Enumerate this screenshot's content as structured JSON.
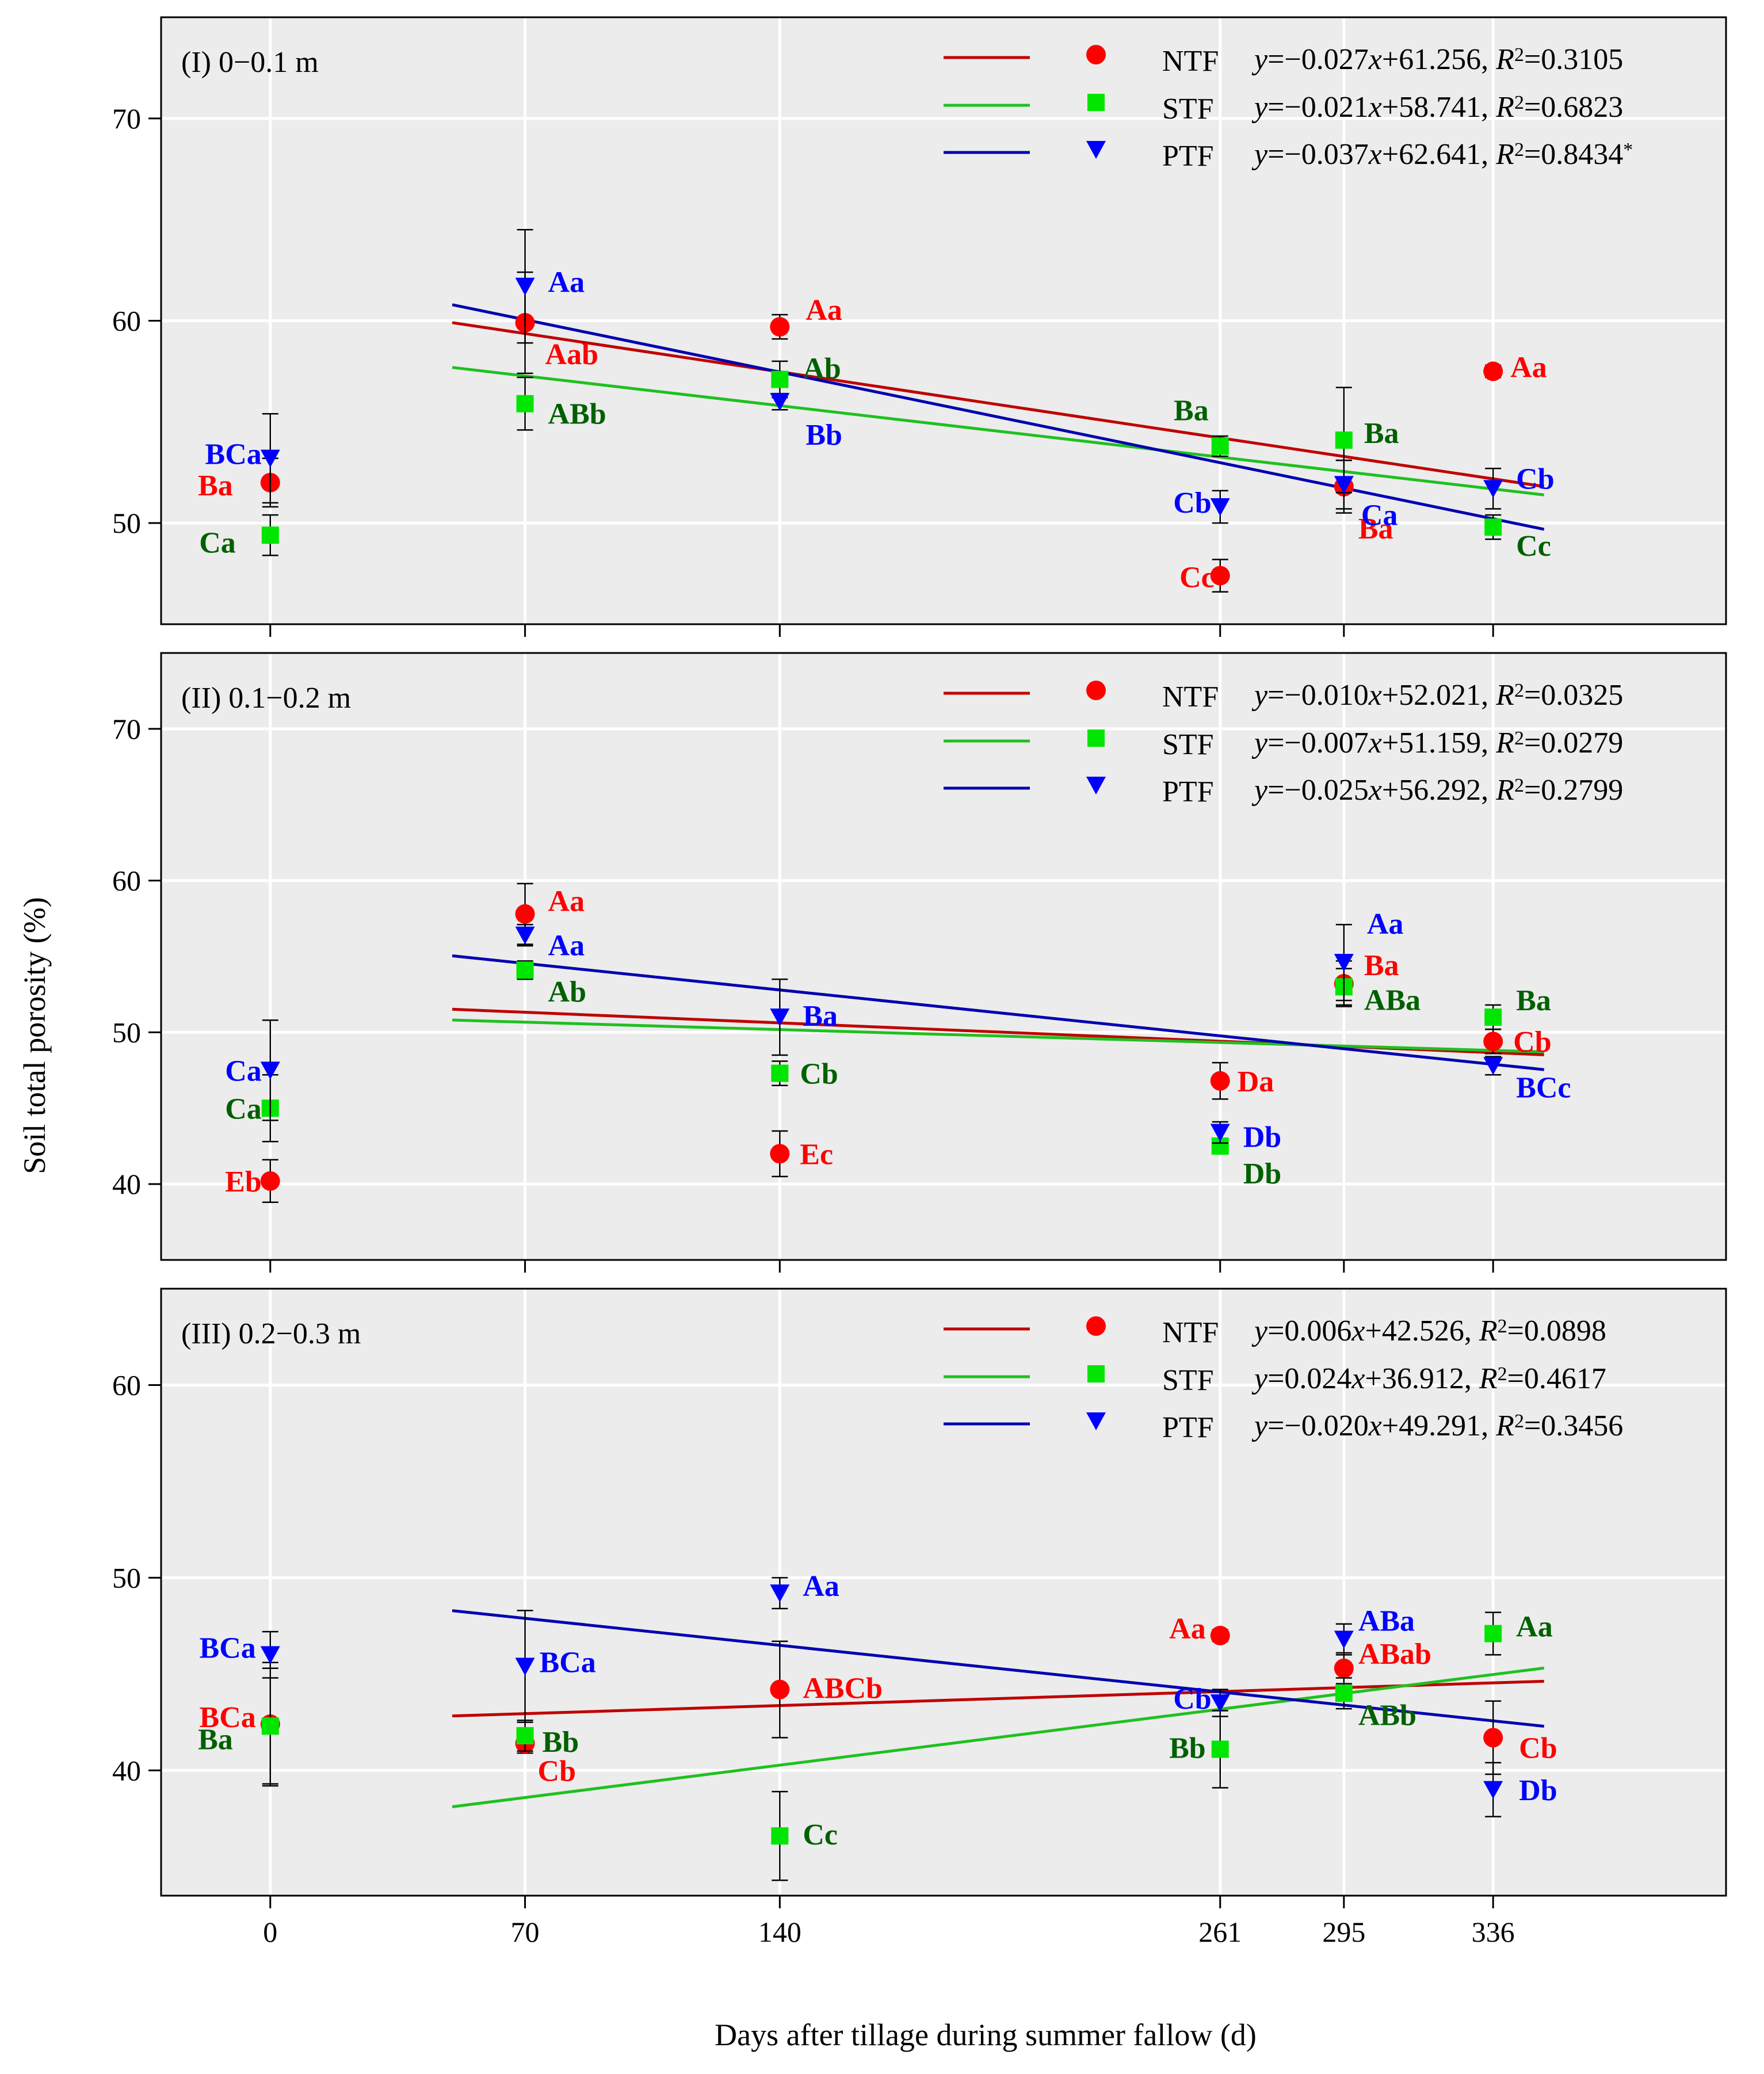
{
  "chart_data": {
    "type": "scatter",
    "xlabel": "Days after tillage during summer fallow (d)",
    "ylabel": "Soil total porosity (%)",
    "xticks": [
      0,
      70,
      140,
      261,
      295,
      336
    ],
    "xlim": [
      -30,
      400
    ],
    "colors": {
      "NTF": "#ff0000",
      "STF": "#00e600",
      "PTF": "#0000ff",
      "NTF_line": "#c00000",
      "STF_line": "#20c020",
      "PTF_line": "#0000b0",
      "STF_label": "#006000",
      "panel_bg": "#ececec"
    },
    "legend_names": [
      "NTF",
      "STF",
      "PTF"
    ],
    "panels": [
      {
        "title": "(I) 0−0.1 m",
        "ylim": [
          45,
          75
        ],
        "yticks": [
          50,
          60,
          70
        ],
        "series": [
          {
            "name": "NTF",
            "marker": "circle",
            "x": [
              0,
              70,
              140,
              261,
              295,
              336
            ],
            "y": [
              52.0,
              59.9,
              59.7,
              47.4,
              51.8,
              57.5
            ],
            "err": [
              1.2,
              2.5,
              0.6,
              0.8,
              1.3,
              0.3
            ],
            "letters": [
              "Ba",
              "Aab",
              "Aa",
              "Cc",
              "Ba",
              "Aa"
            ],
            "fit": {
              "x": [
                50,
                350
              ],
              "equation": "y=−0.027x+61.256, R²=0.3105"
            }
          },
          {
            "name": "STF",
            "marker": "square",
            "x": [
              0,
              70,
              140,
              261,
              295,
              336
            ],
            "y": [
              49.4,
              55.9,
              57.1,
              53.8,
              54.1,
              49.8
            ],
            "err": [
              1.0,
              1.3,
              0.9,
              0.5,
              2.6,
              0.6
            ],
            "letters": [
              "Ca",
              "ABb",
              "Ab",
              "Ba",
              "Ba",
              "Cc"
            ],
            "fit": {
              "x": [
                50,
                350
              ],
              "equation": "y=−0.021x+58.741, R²=0.6823"
            }
          },
          {
            "name": "PTF",
            "marker": "triangle",
            "x": [
              0,
              70,
              140,
              261,
              295,
              336
            ],
            "y": [
              53.2,
              61.7,
              56.0,
              50.8,
              51.9,
              51.7
            ],
            "err": [
              2.2,
              2.8,
              0.4,
              0.8,
              1.2,
              1.0
            ],
            "letters": [
              "BCa",
              "Aa",
              "Bb",
              "Cb",
              "Ca",
              "Cb"
            ],
            "fit": {
              "x": [
                50,
                350
              ],
              "equation": "y=−0.037x+62.641, R²=0.8434*"
            }
          }
        ]
      },
      {
        "title": "(II) 0.1−0.2 m",
        "ylim": [
          35,
          75
        ],
        "yticks": [
          40,
          50,
          60,
          70
        ],
        "series": [
          {
            "name": "NTF",
            "marker": "circle",
            "x": [
              0,
              70,
              140,
              261,
              295,
              336
            ],
            "y": [
              40.2,
              57.8,
              42.0,
              46.8,
              53.2,
              49.4
            ],
            "err": [
              1.4,
              2.0,
              1.5,
              1.2,
              1.5,
              0.8
            ],
            "letters": [
              "Eb",
              "Aa",
              "Ec",
              "Da",
              "Ba",
              "Cb"
            ],
            "fit": {
              "x": [
                50,
                350
              ],
              "equation": "y=−0.010x+52.021, R²=0.0325"
            }
          },
          {
            "name": "STF",
            "marker": "square",
            "x": [
              0,
              70,
              140,
              261,
              295,
              336
            ],
            "y": [
              45.0,
              54.1,
              47.3,
              42.5,
              53.0,
              51.0
            ],
            "err": [
              2.2,
              0.6,
              0.8,
              0.5,
              1.2,
              0.8
            ],
            "letters": [
              "Ca",
              "Ab",
              "Cb",
              "Db",
              "ABa",
              "Ba"
            ],
            "fit": {
              "x": [
                50,
                350
              ],
              "equation": "y=−0.007x+51.159, R²=0.0279"
            }
          },
          {
            "name": "PTF",
            "marker": "triangle",
            "x": [
              0,
              70,
              140,
              261,
              295,
              336
            ],
            "y": [
              47.5,
              56.4,
              51.0,
              43.4,
              54.6,
              47.8
            ],
            "err": [
              3.3,
              0.7,
              2.5,
              0.7,
              2.5,
              0.6
            ],
            "letters": [
              "Ca",
              "Aa",
              "Ba",
              "Db",
              "Aa",
              "BCc"
            ],
            "fit": {
              "x": [
                50,
                350
              ],
              "equation": "y=−0.025x+56.292, R²=0.2799"
            }
          }
        ]
      },
      {
        "title": "(III) 0.2−0.3 m",
        "ylim": [
          33.5,
          65
        ],
        "yticks": [
          40,
          50,
          60
        ],
        "series": [
          {
            "name": "NTF",
            "marker": "circle",
            "x": [
              0,
              70,
              140,
              261,
              295,
              336
            ],
            "y": [
              42.4,
              41.4,
              44.2,
              47.0,
              45.3,
              41.7
            ],
            "err": [
              3.2,
              0.5,
              2.5,
              0.3,
              0.8,
              1.9
            ],
            "letters": [
              "BCa",
              "Cb",
              "ABCb",
              "Aa",
              "ABab",
              "Cb"
            ],
            "fit": {
              "x": [
                50,
                350
              ],
              "equation": "y=0.006x+42.526,   R²=0.0898"
            }
          },
          {
            "name": "STF",
            "marker": "square",
            "x": [
              0,
              70,
              140,
              261,
              295,
              336
            ],
            "y": [
              42.3,
              41.8,
              36.6,
              41.1,
              44.0,
              47.1
            ],
            "err": [
              3.0,
              0.8,
              2.3,
              2.0,
              0.8,
              1.1
            ],
            "letters": [
              "Ba",
              "Bb",
              "Cc",
              "Bb",
              "ABb",
              "Aa"
            ],
            "fit": {
              "x": [
                50,
                350
              ],
              "equation": "y=0.024x+36.912,   R²=0.4617"
            }
          },
          {
            "name": "PTF",
            "marker": "triangle",
            "x": [
              0,
              70,
              140,
              261,
              295,
              336
            ],
            "y": [
              46.0,
              45.4,
              49.2,
              43.5,
              46.8,
              39.0
            ],
            "err": [
              1.2,
              2.9,
              0.8,
              0.7,
              0.8,
              1.4
            ],
            "letters": [
              "BCa",
              "BCa",
              "Aa",
              "Cb",
              "ABa",
              "Db"
            ],
            "fit": {
              "x": [
                50,
                350
              ],
              "equation": "y=−0.020x+49.291, R²=0.3456"
            }
          }
        ]
      }
    ]
  }
}
